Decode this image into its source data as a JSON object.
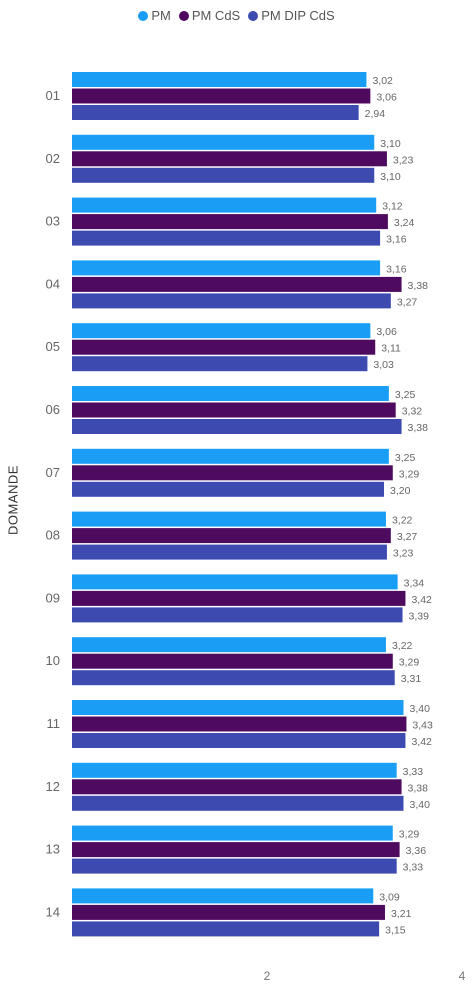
{
  "chart_data": {
    "type": "bar",
    "orientation": "horizontal",
    "ylabel": "DOMANDE",
    "xlabel": "",
    "categories": [
      "01",
      "02",
      "03",
      "04",
      "05",
      "06",
      "07",
      "08",
      "09",
      "10",
      "11",
      "12",
      "13",
      "14"
    ],
    "series": [
      {
        "name": "PM",
        "color": "#1a9ef5",
        "values": [
          "3,02",
          "3,10",
          "3,12",
          "3,16",
          "3,06",
          "3,25",
          "3,25",
          "3,22",
          "3,34",
          "3,22",
          "3,40",
          "3,33",
          "3,29",
          "3,09"
        ]
      },
      {
        "name": "PM CdS",
        "color": "#4d0a5e",
        "values": [
          "3,06",
          "3,23",
          "3,24",
          "3,38",
          "3,11",
          "3,32",
          "3,29",
          "3,27",
          "3,42",
          "3,29",
          "3,43",
          "3,38",
          "3,36",
          "3,21"
        ]
      },
      {
        "name": "PM DIP CdS",
        "color": "#3d4bb0",
        "values": [
          "2,94",
          "3,10",
          "3,16",
          "3,27",
          "3,03",
          "3,38",
          "3,20",
          "3,23",
          "3,39",
          "3,31",
          "3,42",
          "3,40",
          "3,33",
          "3,15"
        ]
      }
    ],
    "xticks": [
      "2",
      "4"
    ],
    "xlim": [
      0,
      4
    ],
    "legend_position": "top-center",
    "grid": false
  }
}
